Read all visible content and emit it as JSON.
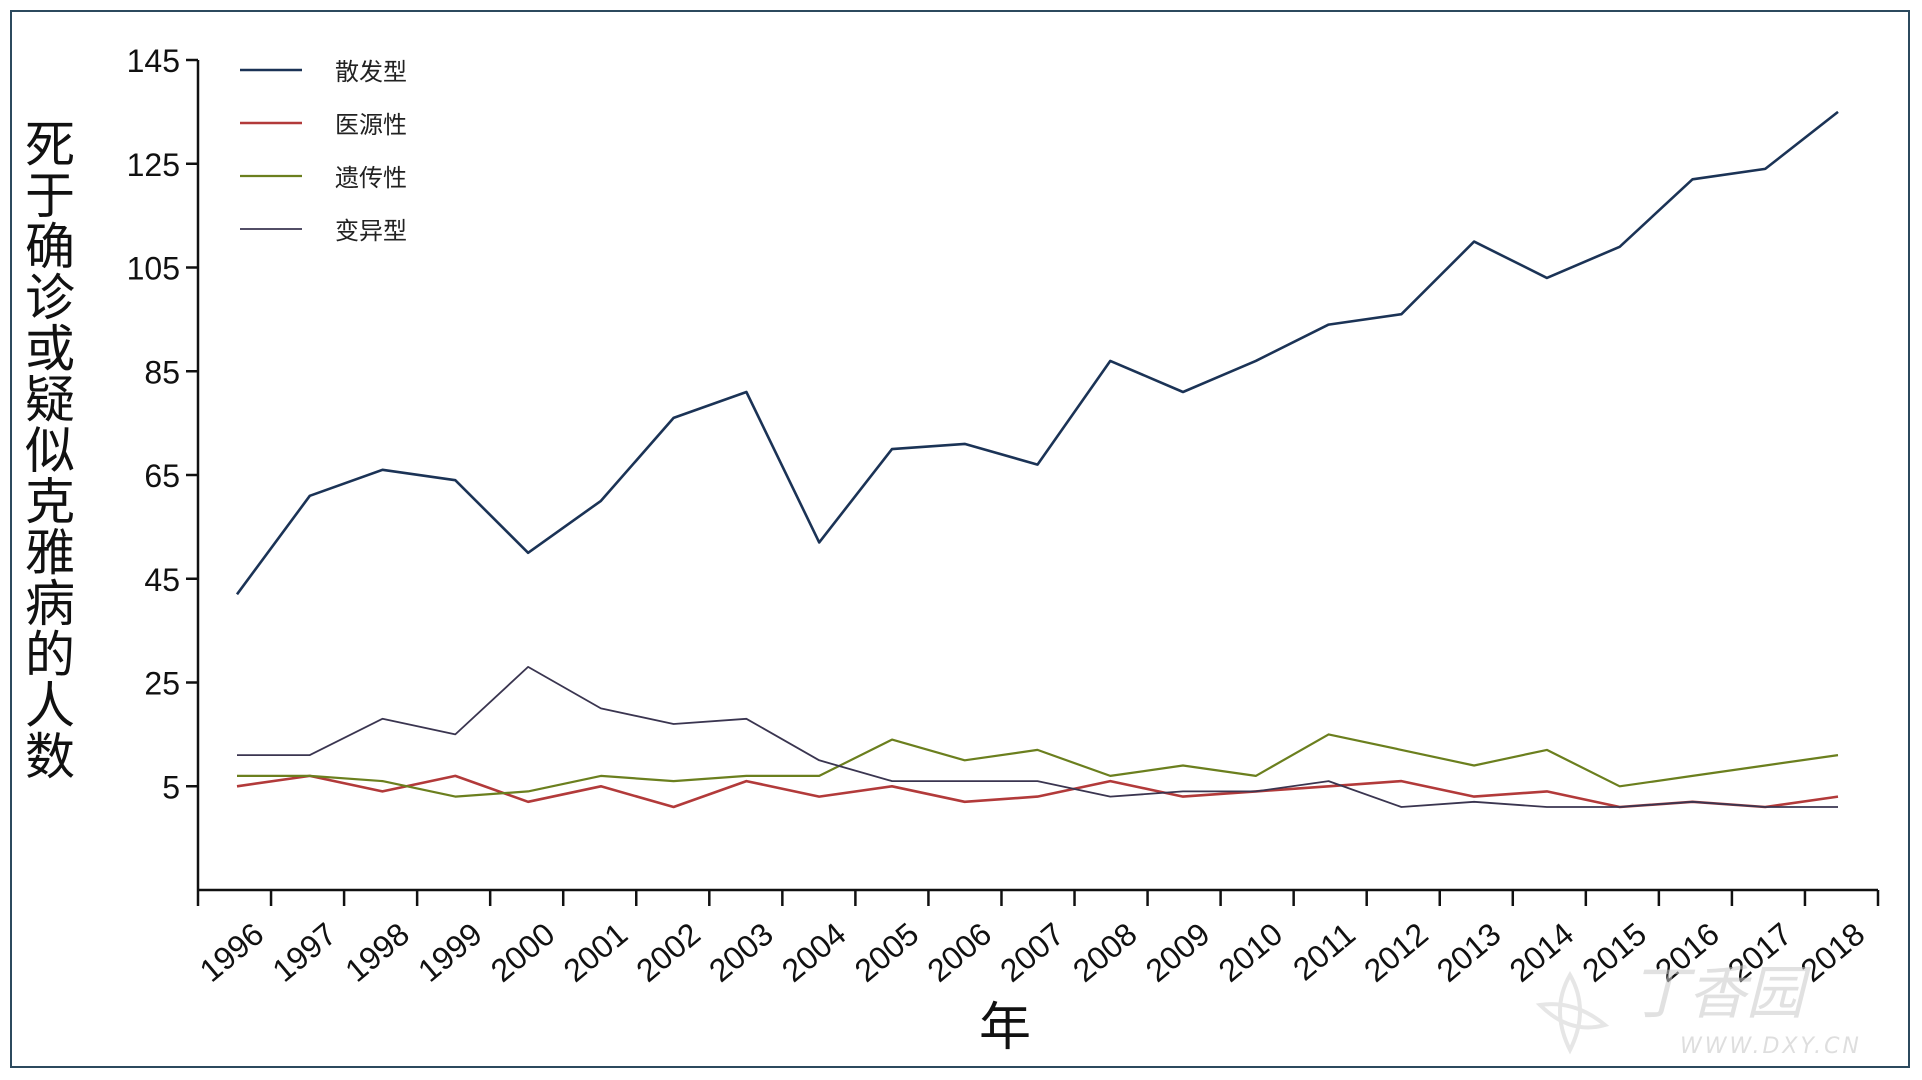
{
  "chart_data": {
    "type": "line",
    "title": "",
    "xlabel": "年",
    "ylabel": "死于确诊或疑似克雅病的人数",
    "ylim": [
      -15,
      145
    ],
    "yticks": [
      5,
      25,
      45,
      65,
      85,
      105,
      125,
      145
    ],
    "x": [
      "1996",
      "1997",
      "1998",
      "1999",
      "2000",
      "2001",
      "2002",
      "2003",
      "2004",
      "2005",
      "2006",
      "2007",
      "2008",
      "2009",
      "2010",
      "2011",
      "2012",
      "2013",
      "2014",
      "2015",
      "2016",
      "2017",
      "2018"
    ],
    "grid": false,
    "legend": "top-left",
    "series": [
      {
        "name": "散发型",
        "color": "#1b3356",
        "width": 2.6,
        "values": [
          42,
          61,
          66,
          64,
          50,
          60,
          76,
          81,
          52,
          70,
          71,
          67,
          87,
          81,
          87,
          94,
          96,
          110,
          103,
          109,
          122,
          124,
          135
        ]
      },
      {
        "name": "医源性",
        "color": "#b23a3a",
        "width": 2.6,
        "values": [
          5,
          7,
          4,
          7,
          2,
          5,
          1,
          6,
          3,
          5,
          2,
          3,
          6,
          3,
          4,
          5,
          6,
          3,
          4,
          1,
          2,
          1,
          3
        ]
      },
      {
        "name": "遗传性",
        "color": "#6b7f1e",
        "width": 2.2,
        "values": [
          7,
          7,
          6,
          3,
          4,
          7,
          6,
          7,
          7,
          14,
          10,
          12,
          7,
          9,
          7,
          15,
          12,
          9,
          12,
          5,
          7,
          9,
          11
        ]
      },
      {
        "name": "变异型",
        "color": "#3a3550",
        "width": 1.8,
        "values": [
          11,
          11,
          18,
          15,
          28,
          20,
          17,
          18,
          10,
          6,
          6,
          6,
          3,
          4,
          4,
          6,
          1,
          2,
          1,
          1,
          2,
          1,
          1
        ]
      }
    ]
  },
  "watermark": {
    "text": "丁香园",
    "url_text": "WWW.DXY.CN"
  }
}
